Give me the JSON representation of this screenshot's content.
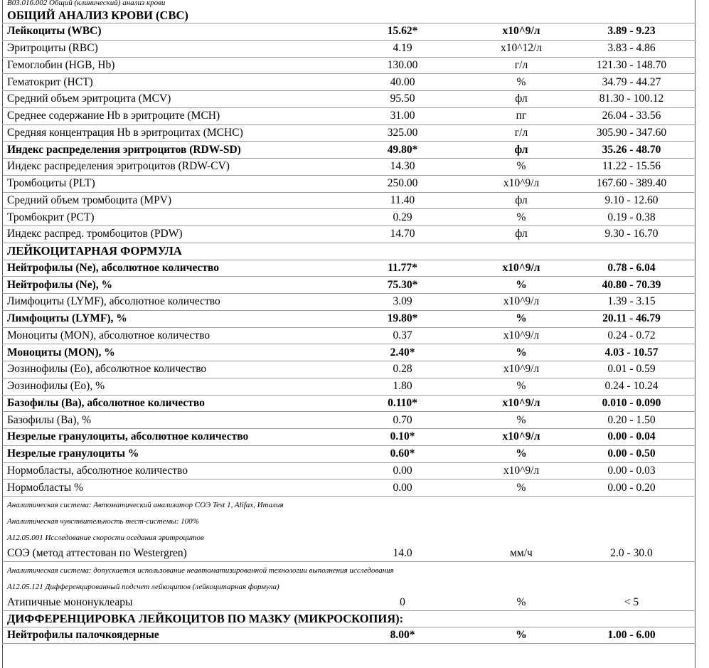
{
  "rows": [
    {
      "style": "code",
      "text": "B03.016.002 Общий (клинический) анализ крови"
    },
    {
      "style": "section",
      "text": "ОБЩИЙ АНАЛИЗ КРОВИ (CBC)"
    },
    {
      "style": "result",
      "bold": true,
      "cells": [
        "Лейкоциты (WBC)",
        "15.62*",
        "x10^9/л",
        "3.89 - 9.23"
      ]
    },
    {
      "style": "result",
      "bold": false,
      "cells": [
        "Эритроциты (RBC)",
        "4.19",
        "x10^12/л",
        "3.83 - 4.86"
      ]
    },
    {
      "style": "result",
      "bold": false,
      "cells": [
        "Гемоглобин (HGB, Hb)",
        "130.00",
        "г/л",
        "121.30 - 148.70"
      ]
    },
    {
      "style": "result",
      "bold": false,
      "cells": [
        "Гематокрит (HCT)",
        "40.00",
        "%",
        "34.79 - 44.27"
      ]
    },
    {
      "style": "result",
      "bold": false,
      "cells": [
        "Средний объем эритроцита (MCV)",
        "95.50",
        "фл",
        "81.30 - 100.12"
      ]
    },
    {
      "style": "result",
      "bold": false,
      "cells": [
        "Среднее содержание Hb в эритроците (MCH)",
        "31.00",
        "пг",
        "26.04 - 33.56"
      ]
    },
    {
      "style": "result",
      "bold": false,
      "cells": [
        "Средняя концентрация Hb в эритроцитах (MCHC)",
        "325.00",
        "г/л",
        "305.90 - 347.60"
      ]
    },
    {
      "style": "result",
      "bold": true,
      "cells": [
        "Индекс распределения эритроцитов (RDW-SD)",
        "49.80*",
        "фл",
        "35.26 - 48.70"
      ]
    },
    {
      "style": "result",
      "bold": false,
      "cells": [
        "Индекс распределения эритроцитов (RDW-CV)",
        "14.30",
        "%",
        "11.22 - 15.56"
      ]
    },
    {
      "style": "result",
      "bold": false,
      "cells": [
        "Тромбоциты (PLT)",
        "250.00",
        "x10^9/л",
        "167.60 - 389.40"
      ]
    },
    {
      "style": "result",
      "bold": false,
      "cells": [
        "Средний объем тромбоцита (MPV)",
        "11.40",
        "фл",
        "9.10 - 12.60"
      ]
    },
    {
      "style": "result",
      "bold": false,
      "cells": [
        "Тромбокрит (PCT)",
        "0.29",
        "%",
        "0.19 - 0.38"
      ]
    },
    {
      "style": "result",
      "bold": false,
      "cells": [
        "Индекс распред. тромбоцитов (PDW)",
        "14.70",
        "фл",
        "9.30 - 16.70"
      ]
    },
    {
      "style": "section",
      "text": "ЛЕЙКОЦИТАРНАЯ ФОРМУЛА"
    },
    {
      "style": "result",
      "bold": true,
      "cells": [
        "Нейтрофилы (Ne), абсолютное количество",
        "11.77*",
        "x10^9/л",
        "0.78 - 6.04"
      ]
    },
    {
      "style": "result",
      "bold": true,
      "cells": [
        "Нейтрофилы (Ne), %",
        "75.30*",
        "%",
        "40.80 - 70.39"
      ]
    },
    {
      "style": "result",
      "bold": false,
      "cells": [
        "Лимфоциты (LYMF), абсолютное количество",
        "3.09",
        "x10^9/л",
        "1.39 - 3.15"
      ]
    },
    {
      "style": "result",
      "bold": true,
      "cells": [
        "Лимфоциты (LYMF), %",
        "19.80*",
        "%",
        "20.11 - 46.79"
      ]
    },
    {
      "style": "result",
      "bold": false,
      "cells": [
        "Моноциты (MON), абсолютное количество",
        "0.37",
        "x10^9/л",
        "0.24 - 0.72"
      ]
    },
    {
      "style": "result",
      "bold": true,
      "cells": [
        "Моноциты (MON), %",
        "2.40*",
        "%",
        "4.03 - 10.57"
      ]
    },
    {
      "style": "result",
      "bold": false,
      "cells": [
        "Эозинофилы (Eo), абсолютное количество",
        "0.28",
        "x10^9/л",
        "0.01 - 0.59"
      ]
    },
    {
      "style": "result",
      "bold": false,
      "cells": [
        "Эозинофилы (Eo), %",
        "1.80",
        "%",
        "0.24 - 10.24"
      ]
    },
    {
      "style": "result",
      "bold": true,
      "cells": [
        "Базофилы (Ba), абсолютное количество",
        "0.110*",
        "x10^9/л",
        "0.010 - 0.090"
      ]
    },
    {
      "style": "result",
      "bold": false,
      "cells": [
        "Базофилы (Ba), %",
        "0.70",
        "%",
        "0.20 - 1.50"
      ]
    },
    {
      "style": "result",
      "bold": true,
      "cells": [
        "Незрелые гранулоциты, абсолютное количество",
        "0.10*",
        "x10^9/л",
        "0.00 - 0.04"
      ]
    },
    {
      "style": "result",
      "bold": true,
      "cells": [
        "Незрелые гранулоциты %",
        "0.60*",
        "%",
        "0.00 - 0.50"
      ]
    },
    {
      "style": "result",
      "bold": false,
      "cells": [
        "Нормобласты, абсолютное количество",
        "0.00",
        "x10^9/л",
        "0.00 - 0.03"
      ]
    },
    {
      "style": "result",
      "bold": false,
      "cells": [
        "Нормобласты %",
        "0.00",
        "%",
        "0.00 - 0.20"
      ]
    },
    {
      "style": "note",
      "text": "Аналитическая система: Автоматический анализатор СОЭ Test 1, Alifax, Италия"
    },
    {
      "style": "note",
      "text": "Аналитическая чувствительность тест-системы: 100%"
    },
    {
      "style": "note",
      "text": "A12.05.001 Исследование скорости оседания эритроцитов"
    },
    {
      "style": "result",
      "bold": false,
      "cells": [
        "СОЭ (метод аттестован по Westergren)",
        "14.0",
        "мм/ч",
        "2.0 - 30.0"
      ]
    },
    {
      "style": "note",
      "text": "Аналитическая система: допускается использование неавтоматизированной технологии выполнения исследования"
    },
    {
      "style": "note",
      "text": "A12.05.121 Дифференцированный подсчет лейкоцитов (лейкоцитарная формула)"
    },
    {
      "style": "result",
      "bold": false,
      "cells": [
        "Атипичные мононуклеары",
        "0",
        "%",
        "< 5"
      ]
    },
    {
      "style": "section",
      "text": "ДИФФЕРЕНЦИРОВКА ЛЕЙКОЦИТОВ ПО МАЗКУ (МИКРОСКОПИЯ):"
    },
    {
      "style": "result",
      "bold": true,
      "cells": [
        "Нейтрофилы палочкоядерные",
        "8.00*",
        "%",
        "1.00 - 6.00"
      ]
    }
  ]
}
